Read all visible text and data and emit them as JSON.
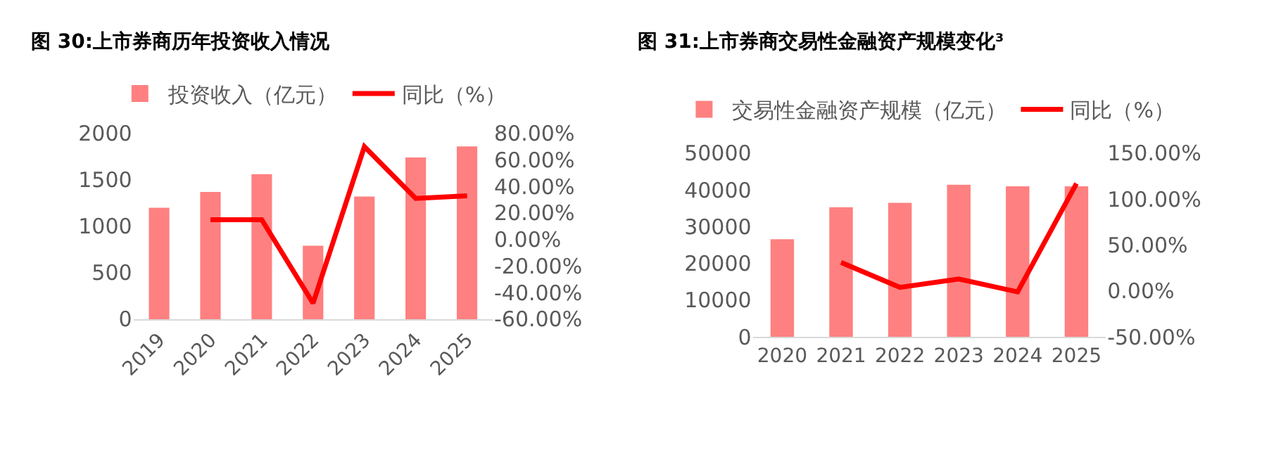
{
  "chart_data": [
    {
      "type": "bar",
      "title": "图 30:上市券商历年投资收入情况",
      "categories": [
        "2019",
        "2020",
        "2021",
        "2022",
        "2023",
        "2024",
        "2025"
      ],
      "series": [
        {
          "name": "投资收入（亿元）",
          "color": "#ff8080",
          "values": [
            1200,
            1370,
            1560,
            790,
            1320,
            1740,
            1860
          ]
        },
        {
          "name": "同比（%）",
          "type": "line",
          "axis": "y2",
          "color": "#ff0000",
          "values": [
            null,
            15,
            15,
            -48,
            70,
            31,
            33
          ]
        }
      ],
      "ylim": [
        0,
        2000
      ],
      "yticks": [
        0,
        500,
        1000,
        1500,
        2000
      ],
      "y2lim": [
        -60,
        80
      ],
      "y2ticks": [
        {
          "value": -60,
          "label": "-60.00%"
        },
        {
          "value": -40,
          "label": "-40.00%"
        },
        {
          "value": -20,
          "label": "-20.00%"
        },
        {
          "value": 0,
          "label": "0.00%"
        },
        {
          "value": 20,
          "label": "20.00%"
        },
        {
          "value": 40,
          "label": "40.00%"
        },
        {
          "value": 60,
          "label": "60.00%"
        },
        {
          "value": 80,
          "label": "80.00%"
        }
      ],
      "legend": "top"
    },
    {
      "type": "bar",
      "title": "图 31:上市券商交易性金融资产规模变化³",
      "categories": [
        "2020",
        "2021",
        "2022",
        "2023",
        "2024",
        "2025"
      ],
      "series": [
        {
          "name": "交易性金融资产规模（亿元）",
          "color": "#ff8080",
          "values": [
            26600,
            35300,
            36500,
            41400,
            41000,
            41000
          ]
        },
        {
          "name": "同比（%）",
          "type": "line",
          "axis": "y2",
          "color": "#ff0000",
          "values": [
            null,
            31,
            4,
            13,
            -1,
            117
          ]
        }
      ],
      "ylim": [
        0,
        50000
      ],
      "yticks": [
        0,
        10000,
        20000,
        30000,
        40000,
        50000
      ],
      "y2lim": [
        -50,
        150
      ],
      "y2ticks": [
        {
          "value": -50,
          "label": "-50.00%"
        },
        {
          "value": 0,
          "label": "0.00%"
        },
        {
          "value": 50,
          "label": "50.00%"
        },
        {
          "value": 100,
          "label": "100.00%"
        },
        {
          "value": 150,
          "label": "150.00%"
        }
      ],
      "legend": "top"
    }
  ]
}
